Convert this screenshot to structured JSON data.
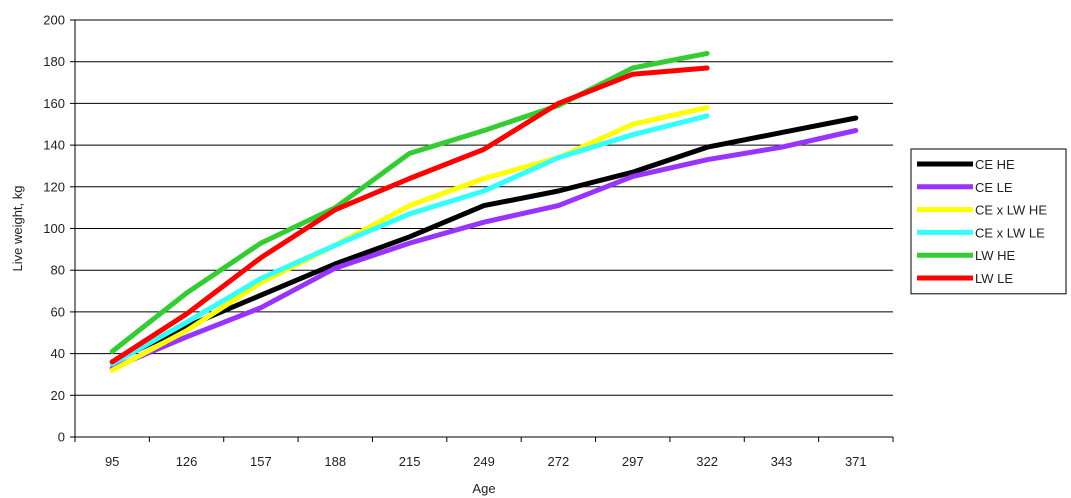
{
  "chart_data": {
    "type": "line",
    "title": "",
    "xlabel": "Age",
    "ylabel": "Live weight, kg",
    "categories": [
      "95",
      "126",
      "157",
      "188",
      "215",
      "249",
      "272",
      "297",
      "322",
      "343",
      "371"
    ],
    "ylim": [
      0,
      200
    ],
    "yticks": [
      0,
      20,
      40,
      60,
      80,
      100,
      120,
      140,
      160,
      180,
      200
    ],
    "grid": true,
    "legend_position": "right",
    "series": [
      {
        "name": "CE HE",
        "color": "#000000",
        "values": [
          36,
          53,
          68,
          83,
          96,
          111,
          118,
          127,
          139,
          146,
          153
        ]
      },
      {
        "name": "CE LE",
        "color": "#9933ff",
        "values": [
          33,
          48,
          62,
          81,
          93,
          103,
          111,
          125,
          133,
          139,
          147
        ]
      },
      {
        "name": "CE x LW HE",
        "color": "#ffff00",
        "values": [
          32,
          51,
          74,
          92,
          111,
          124,
          134,
          150,
          158,
          null,
          null
        ]
      },
      {
        "name": "CE x LW LE",
        "color": "#33ffff",
        "values": [
          35,
          55,
          76,
          92,
          107,
          118,
          134,
          145,
          154,
          null,
          null
        ]
      },
      {
        "name": "LW HE",
        "color": "#33cc33",
        "values": [
          41,
          69,
          93,
          110,
          136,
          147,
          159,
          177,
          184,
          null,
          null
        ]
      },
      {
        "name": "LW LE",
        "color": "#ff0000",
        "values": [
          36,
          59,
          86,
          109,
          124,
          138,
          160,
          174,
          177,
          null,
          null
        ]
      }
    ]
  }
}
